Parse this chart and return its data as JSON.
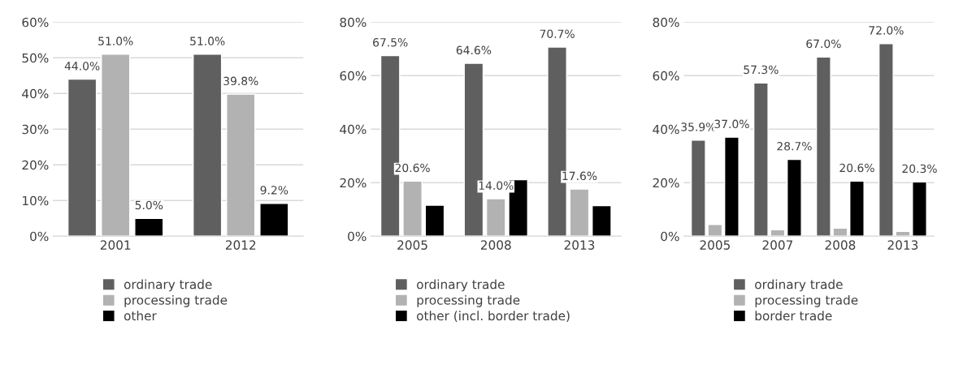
{
  "chart_data": [
    {
      "type": "bar",
      "categories": [
        "2001",
        "2012"
      ],
      "ylim": [
        0,
        60
      ],
      "yticks": [
        {
          "value": 0,
          "label": "0%"
        },
        {
          "value": 10,
          "label": "10%"
        },
        {
          "value": 20,
          "label": "20%"
        },
        {
          "value": 30,
          "label": "30%"
        },
        {
          "value": 40,
          "label": "40%"
        },
        {
          "value": 50,
          "label": "50%"
        },
        {
          "value": 60,
          "label": "60%"
        }
      ],
      "grid": "y",
      "legend": "bottom",
      "series": [
        {
          "name": "ordinary trade",
          "color": "#5f5f5f",
          "values": [
            44.0,
            51.0
          ],
          "value_labels": [
            "44.0%",
            "51.0%"
          ]
        },
        {
          "name": "processing trade",
          "color": "#b2b2b2",
          "values": [
            51.0,
            39.8
          ],
          "value_labels": [
            "51.0%",
            "39.8%"
          ]
        },
        {
          "name": "other",
          "color": "#000000",
          "values": [
            5.0,
            9.2
          ],
          "value_labels": [
            "5.0%",
            "9.2%"
          ]
        }
      ]
    },
    {
      "type": "bar",
      "categories": [
        "2005",
        "2008",
        "2013"
      ],
      "ylim": [
        0,
        80
      ],
      "yticks": [
        {
          "value": 0,
          "label": "0%"
        },
        {
          "value": 20,
          "label": "20%"
        },
        {
          "value": 40,
          "label": "40%"
        },
        {
          "value": 60,
          "label": "60%"
        },
        {
          "value": 80,
          "label": "80%"
        }
      ],
      "grid": "y",
      "legend": "bottom",
      "series": [
        {
          "name": "ordinary trade",
          "color": "#5f5f5f",
          "values": [
            67.5,
            64.6,
            70.7
          ],
          "value_labels": [
            "67.5%",
            "64.6%",
            "70.7%"
          ]
        },
        {
          "name": "processing trade",
          "color": "#b2b2b2",
          "values": [
            20.6,
            14.0,
            17.6
          ],
          "value_labels": [
            "20.6%",
            "14.0%",
            "17.6%"
          ]
        },
        {
          "name": "other (incl. border trade)",
          "color": "#000000",
          "values": [
            11.6,
            21.1,
            11.4
          ],
          "value_labels": [
            null,
            null,
            null
          ]
        }
      ]
    },
    {
      "type": "bar",
      "categories": [
        "2005",
        "2007",
        "2008",
        "2013"
      ],
      "ylim": [
        0,
        80
      ],
      "yticks": [
        {
          "value": 0,
          "label": "0%"
        },
        {
          "value": 20,
          "label": "20%"
        },
        {
          "value": 40,
          "label": "40%"
        },
        {
          "value": 60,
          "label": "60%"
        },
        {
          "value": 80,
          "label": "80%"
        }
      ],
      "grid": "y",
      "legend": "bottom",
      "series": [
        {
          "name": "ordinary trade",
          "color": "#5f5f5f",
          "values": [
            35.9,
            57.3,
            67.0,
            72.0
          ],
          "value_labels": [
            "35.9%",
            "57.3%",
            "67.0%",
            "72.0%"
          ]
        },
        {
          "name": "processing trade",
          "color": "#b2b2b2",
          "values": [
            4.4,
            2.4,
            3.0,
            1.8
          ],
          "value_labels": [
            null,
            null,
            null,
            null
          ]
        },
        {
          "name": "border trade",
          "color": "#000000",
          "values": [
            37.0,
            28.7,
            20.6,
            20.3
          ],
          "value_labels": [
            "37.0%",
            "28.7%",
            "20.6%",
            "20.3%"
          ]
        }
      ]
    }
  ]
}
